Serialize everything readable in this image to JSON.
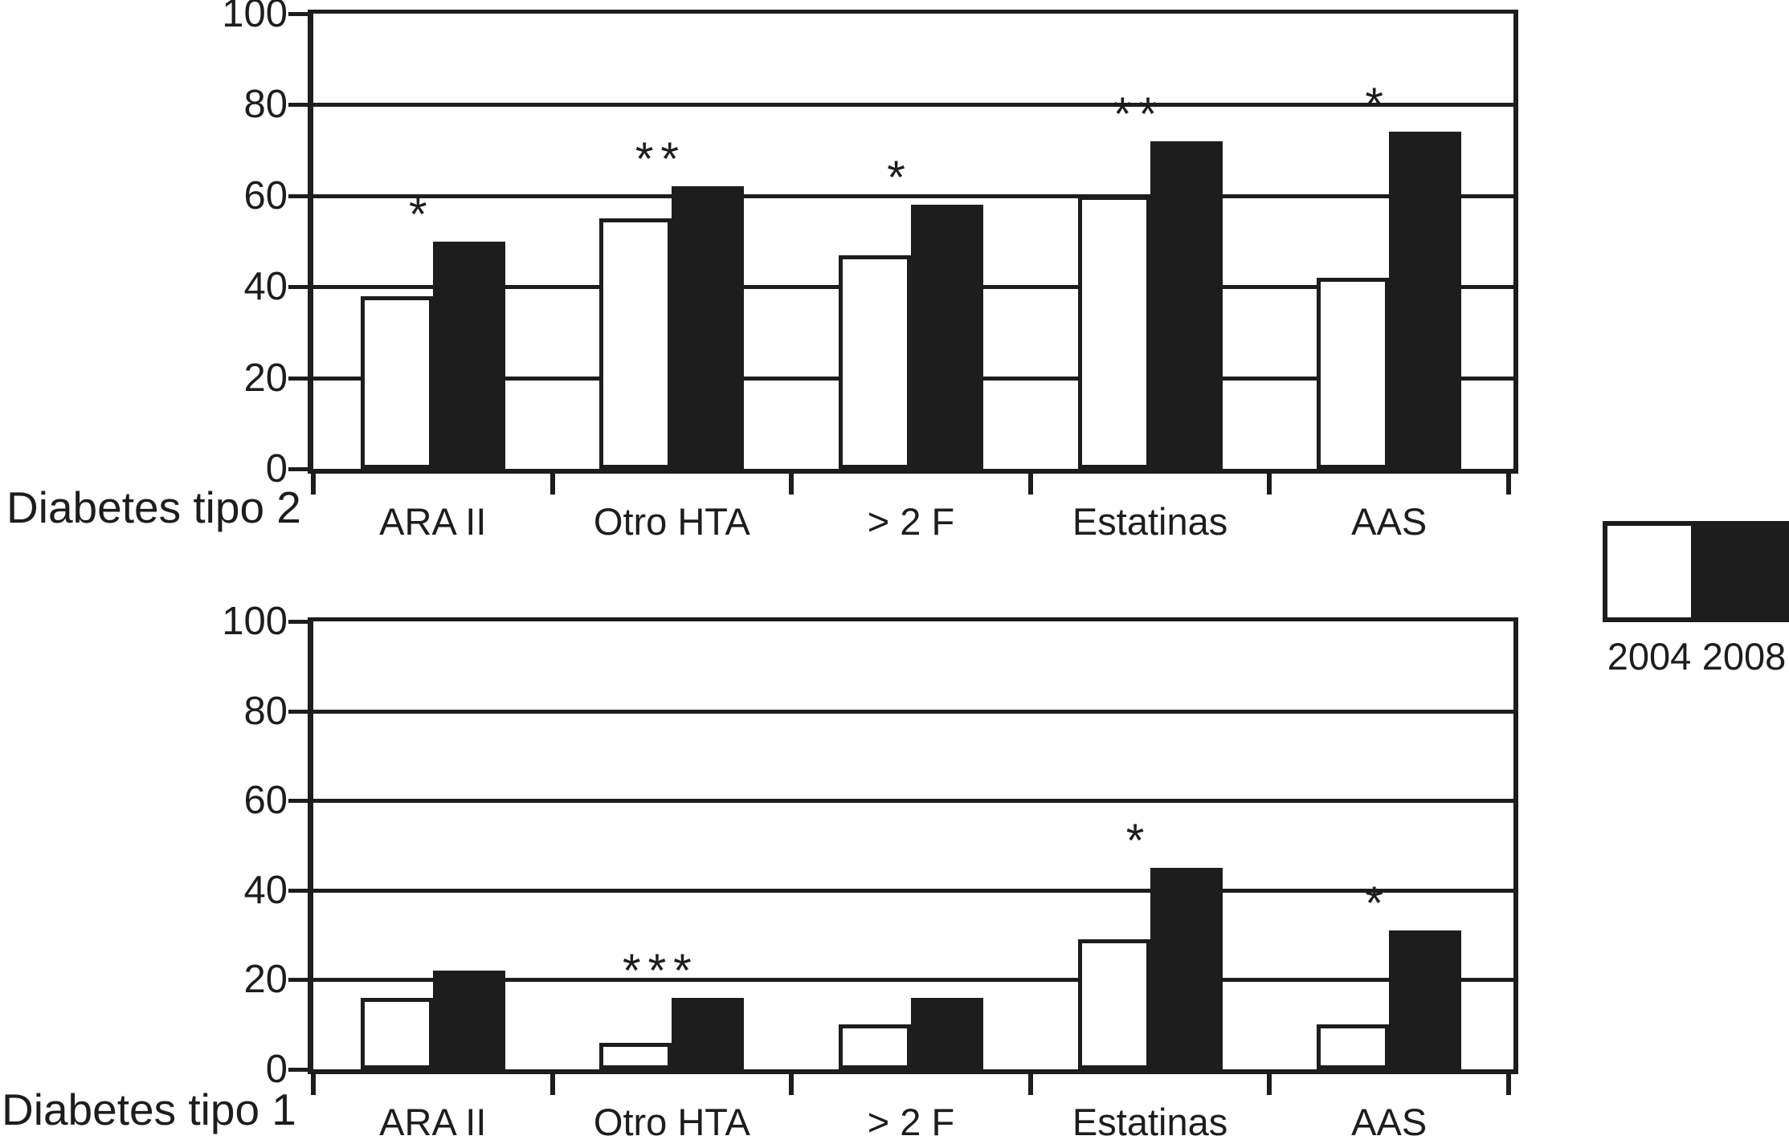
{
  "figure": {
    "background_color": "#ffffff",
    "ink_color": "#1d1d1d",
    "bar_fill_2004": "#ffffff",
    "bar_fill_2008": "#1d1d1d"
  },
  "legend": {
    "position": "right-middle",
    "items": [
      {
        "label": "2004",
        "swatch": "white"
      },
      {
        "label": "2008",
        "swatch": "black"
      }
    ]
  },
  "chart_data": [
    {
      "type": "bar",
      "title": "Diabetes tipo 2",
      "categories": [
        "ARA II",
        "Otro HTA",
        "> 2 F",
        "Estatinas",
        "AAS"
      ],
      "series": [
        {
          "name": "2004",
          "values": [
            38,
            55,
            47,
            60,
            42
          ]
        },
        {
          "name": "2008",
          "values": [
            50,
            62,
            58,
            72,
            74
          ]
        }
      ],
      "annotations": [
        "*",
        "**",
        "*",
        "**",
        "*"
      ],
      "xlabel": "",
      "ylabel": "",
      "ylim": [
        0,
        100
      ],
      "yticks": [
        0,
        20,
        40,
        60,
        80,
        100
      ],
      "grid": true,
      "gridlines_at": [
        20,
        40,
        60,
        80,
        100
      ]
    },
    {
      "type": "bar",
      "title": "Diabetes tipo 1",
      "categories": [
        "ARA II",
        "Otro HTA",
        "> 2 F",
        "Estatinas",
        "AAS"
      ],
      "series": [
        {
          "name": "2004",
          "values": [
            16,
            6,
            10,
            29,
            10
          ]
        },
        {
          "name": "2008",
          "values": [
            22,
            16,
            16,
            45,
            31
          ]
        }
      ],
      "annotations": [
        "",
        "***",
        "",
        "*",
        "*"
      ],
      "xlabel": "",
      "ylabel": "",
      "ylim": [
        0,
        100
      ],
      "yticks": [
        0,
        20,
        40,
        60,
        80,
        100
      ],
      "grid": true,
      "gridlines_at": [
        20,
        40,
        60,
        80,
        100
      ]
    }
  ]
}
